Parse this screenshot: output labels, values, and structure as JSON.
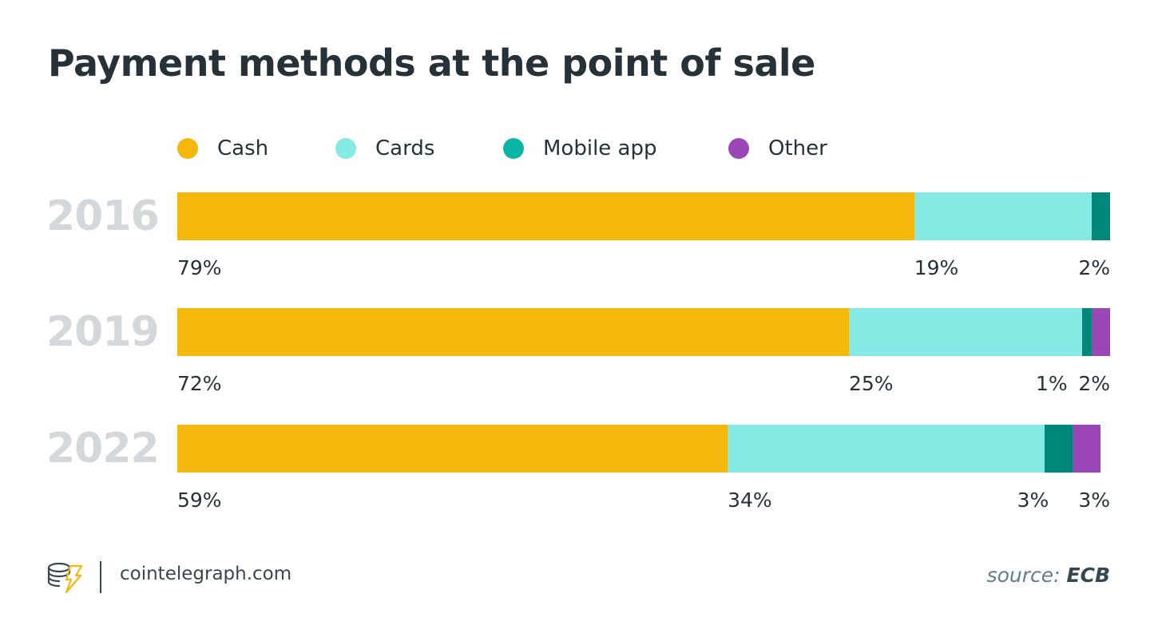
{
  "chart_data": {
    "type": "bar",
    "orientation": "horizontal",
    "stacked": true,
    "title": "Payment methods at the point of sale",
    "categories": [
      "2016",
      "2019",
      "2022"
    ],
    "series": [
      {
        "name": "Cash",
        "color": "#f4b70c",
        "values": [
          79,
          72,
          59
        ],
        "labels": [
          "79%",
          "72%",
          "59%"
        ]
      },
      {
        "name": "Cards",
        "color": "#84eae3",
        "values": [
          19,
          25,
          34
        ],
        "labels": [
          "19%",
          "25%",
          "34%"
        ]
      },
      {
        "name": "Mobile app",
        "color": "#00897b",
        "legend_color": "#0bb5a6",
        "values": [
          2,
          1,
          3
        ],
        "labels": [
          "2%",
          "1%",
          "3%"
        ]
      },
      {
        "name": "Other",
        "color": "#9c47b7",
        "values": [
          0,
          2,
          3
        ],
        "labels": [
          "",
          "2%",
          "3%"
        ]
      }
    ],
    "xlim": [
      0,
      100
    ],
    "legend_position": "top"
  },
  "footer": {
    "site": "cointelegraph.com",
    "source_prefix": "source:",
    "source_name": "ECB"
  }
}
